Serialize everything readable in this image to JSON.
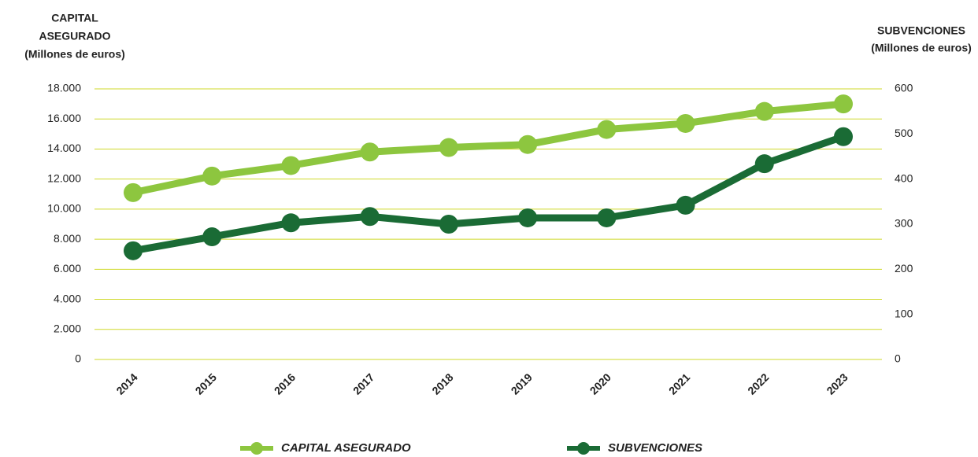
{
  "chart_data": {
    "type": "line",
    "ylabel": [
      "CAPITAL",
      "ASEGURADO",
      "(Millones de euros)"
    ],
    "y2label": [
      "SUBVENCIONES",
      "(Millones de euros)"
    ],
    "categories": [
      "2014",
      "2015",
      "2016",
      "2017",
      "2018",
      "2019",
      "2020",
      "2021",
      "2022",
      "2023"
    ],
    "series": [
      {
        "name": "CAPITAL ASEGURADO",
        "color": "#8dc63f",
        "values": [
          11100,
          12200,
          12900,
          13800,
          14100,
          14300,
          15300,
          15700,
          16500,
          17000
        ]
      },
      {
        "name": "SUBVENCIONES",
        "color": "#1a6b35",
        "axis": "y2",
        "values": [
          241,
          272,
          303,
          317,
          300,
          314,
          314,
          342,
          434,
          494
        ]
      }
    ],
    "ylim": [
      0,
      18000
    ],
    "yticks": [
      0,
      {
        "value": 2000,
        "label": "2.000"
      },
      {
        "value": 4000,
        "label": "4.000"
      },
      {
        "value": 6000,
        "label": "6.000"
      },
      {
        "value": 8000,
        "label": "8.000"
      },
      {
        "value": 10000,
        "label": "10.000"
      },
      {
        "value": 12000,
        "label": "12.000"
      },
      {
        "value": 14000,
        "label": "14.000"
      },
      {
        "value": 16000,
        "label": "16.000"
      },
      {
        "value": 18000,
        "label": "18.000"
      }
    ],
    "y2lim": [
      0,
      600
    ],
    "y2ticks": [
      0,
      100,
      200,
      300,
      400,
      500,
      600
    ],
    "grid": true,
    "legend": "bottom"
  }
}
